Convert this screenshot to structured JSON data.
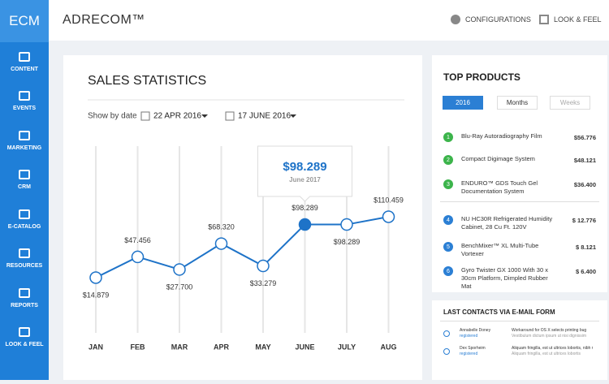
{
  "sidebar": {
    "logo": "ECM",
    "items": [
      "CONTENT",
      "EVENTS",
      "MARKETING",
      "CRM",
      "E-CATALOG",
      "RESOURCES",
      "REPORTS",
      "LOOK & FEEL"
    ]
  },
  "header": {
    "brand": "ADRECOM™",
    "actions": [
      "CONFIGURATIONS",
      "LOOK & FEEL"
    ]
  },
  "sales": {
    "title": "SALES STATISTICS",
    "show_by": "Show by date",
    "date_from": "22 APR 2016",
    "date_to": "17 JUNE 2016",
    "tooltip": {
      "value": "$98.289",
      "date": "June 2017"
    },
    "chart_data": {
      "type": "line",
      "categories": [
        "JAN",
        "FEB",
        "MAR",
        "APR",
        "MAY",
        "JUNE",
        "JULY",
        "AUG"
      ],
      "series": [
        {
          "color": "#1e73c8",
          "values": [
            14879,
            47456,
            27700,
            68320,
            33279,
            98289,
            98289,
            110459
          ],
          "value_labels": [
            "$14.879",
            "$47.456",
            "$27.700",
            "$68.320",
            "$33.279",
            "$98.289",
            "$98.289",
            "$110.459"
          ]
        }
      ],
      "grid": true
    }
  },
  "top_products": {
    "title": "TOP PRODUCTS",
    "filters": [
      "2016",
      "Months",
      "Weeks"
    ],
    "items": [
      {
        "rank": "1",
        "name": "Blu-Ray Autoradiography Film",
        "price": "$56.776",
        "color": "#3cb44b"
      },
      {
        "rank": "2",
        "name": "Compact Digimage System",
        "price": "$48.121",
        "color": "#3cb44b"
      },
      {
        "rank": "3",
        "name": "ENDURO™ GDS Touch Gel Documentation System",
        "price": "$36.400",
        "color": "#3cb44b"
      },
      {
        "rank": "4",
        "name": "NU HC30R Refrigerated Humidity Cabinet, 28 Cu Ft. 120V",
        "price": "$ 12.776",
        "color": "#2b7fd4"
      },
      {
        "rank": "5",
        "name": "BenchMixer™ XL Multi-Tube Vortexer",
        "price": "$ 8.121",
        "color": "#2b7fd4"
      },
      {
        "rank": "6",
        "name": "Gyro Twister GX 1000 With 30 x 30cm Platform, Dimpled Rubber Mat",
        "price": "$ 6.400",
        "color": "#2b7fd4"
      }
    ]
  },
  "contacts": {
    "title": "LAST CONTACTS VIA E-MAIL FORM",
    "rows": [
      {
        "name": "Annabelle Doney",
        "status": "registered",
        "subject": "Workaround for OS X selects printing bug",
        "preview": "Vestibulum dictum ipsum ut nisi dignissim"
      },
      {
        "name": "Dex Sporheim",
        "status": "registered",
        "subject": "Aliquam fringilla, est ut ultrices lobortis, nibh mauris",
        "preview": "Aliquam fringilla, est ut ultrices lobortis"
      }
    ]
  }
}
